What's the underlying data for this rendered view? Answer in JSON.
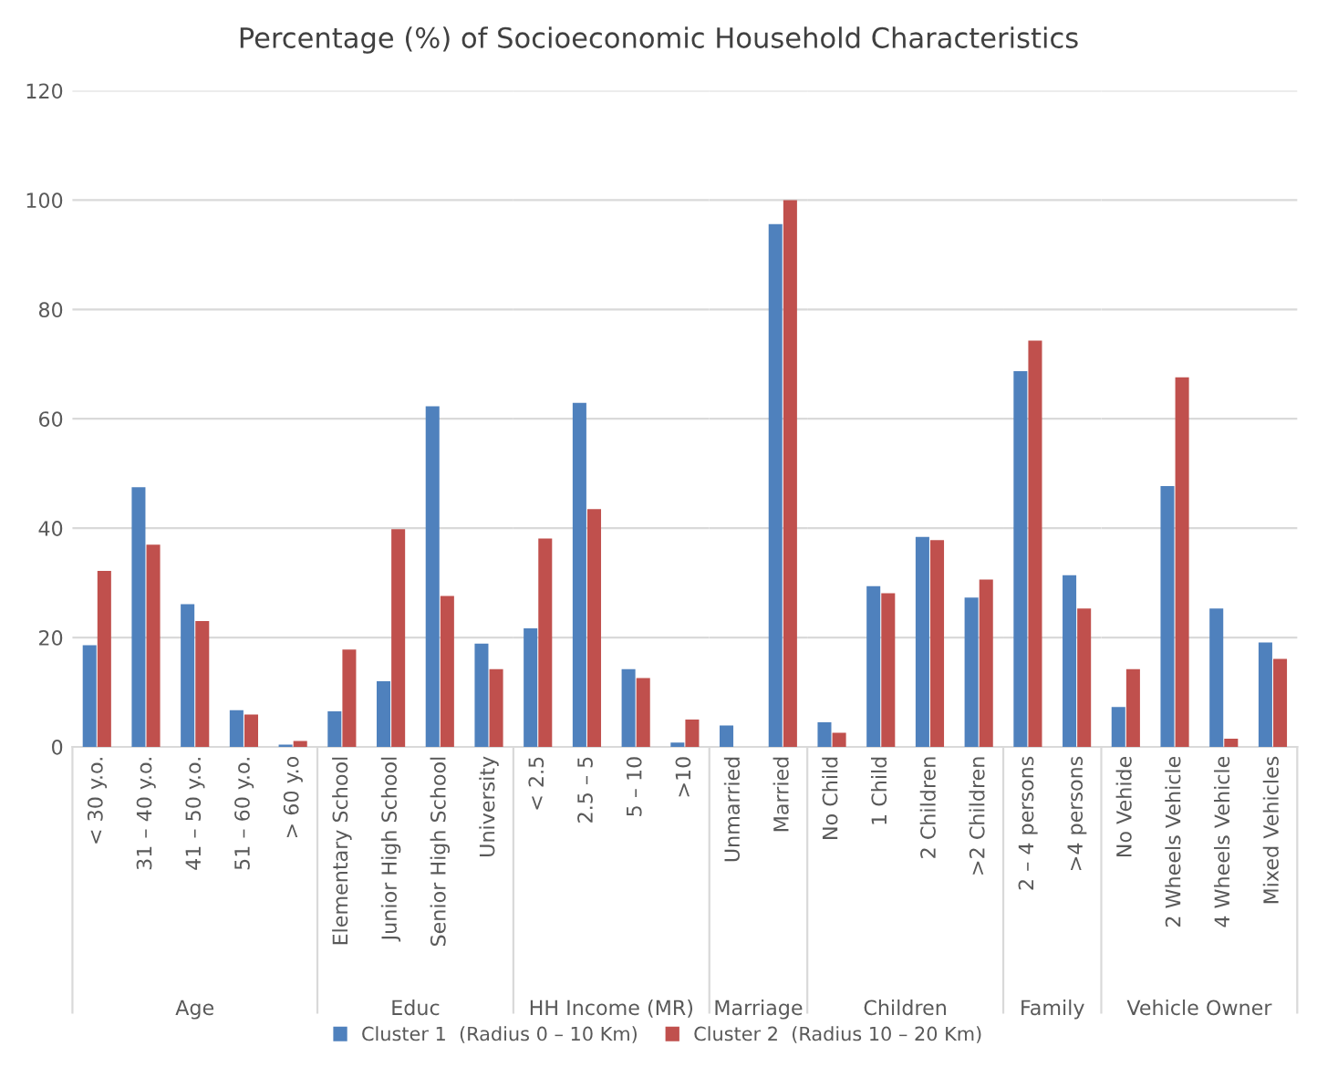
{
  "chart_data": [
    {
      "type": "bar",
      "title": "Percentage (%) of Socioeconomic Household Characteristics",
      "xlabel": "Age",
      "categories": [
        "< 30 y.o.",
        "31 – 40 y.o.",
        "41 – 50 y.o.",
        "51 – 60 y.o.",
        "> 60 y.o"
      ],
      "series": [
        {
          "name": "Cluster 1  (Radius 0 – 10 Km)",
          "color": "#4f81bd",
          "values": [
            18.6,
            47.5,
            26.1,
            6.7,
            0.4
          ]
        },
        {
          "name": "Cluster 2  (Radius 10 – 20 Km)",
          "color": "#c0504d",
          "values": [
            32.2,
            37.0,
            23.0,
            5.9,
            1.1
          ]
        }
      ],
      "ylim": [
        0,
        120
      ],
      "yticks": [
        0,
        20,
        40,
        60,
        80,
        100,
        120
      ],
      "grid": "y",
      "legend": "bottom"
    },
    {
      "type": "bar",
      "xlabel": "Educ",
      "categories": [
        "Elementary School",
        "Junior High School",
        "Senior High School",
        "University"
      ],
      "series": [
        {
          "color": "#4f81bd",
          "values": [
            6.5,
            12.0,
            62.3,
            18.9
          ]
        },
        {
          "color": "#c0504d",
          "values": [
            17.8,
            39.8,
            27.6,
            14.2
          ]
        }
      ],
      "ylim": [
        0,
        120
      ],
      "yticks": [
        0,
        20,
        40,
        60,
        80,
        100,
        120
      ],
      "grid": "y",
      "tick_labels": "x"
    },
    {
      "type": "bar",
      "xlabel": "HH Income (MR)",
      "categories": [
        "< 2.5",
        "2.5 – 5",
        "5 – 10",
        ">10"
      ],
      "series": [
        {
          "color": "#4f81bd",
          "values": [
            21.7,
            62.9,
            14.2,
            0.8
          ]
        },
        {
          "color": "#c0504d",
          "values": [
            38.1,
            43.5,
            12.6,
            5.0
          ]
        }
      ],
      "ylim": [
        0,
        120
      ],
      "yticks": [
        0,
        20,
        40,
        60,
        80,
        100,
        120
      ],
      "grid": "y",
      "tick_labels": "x"
    },
    {
      "type": "bar",
      "xlabel": "Marriage",
      "categories": [
        "Unmarried",
        "Married"
      ],
      "series": [
        {
          "color": "#4f81bd",
          "values": [
            3.9,
            95.6
          ]
        },
        {
          "color": "#c0504d",
          "values": [
            0,
            100
          ]
        }
      ],
      "ylim": [
        0,
        120
      ],
      "yticks": [
        0,
        20,
        40,
        60,
        80,
        100,
        120
      ],
      "grid": "y",
      "tick_labels": "x"
    },
    {
      "type": "bar",
      "xlabel": "Children",
      "categories": [
        "No Child",
        "1 Child",
        "2 Children",
        ">2 Children"
      ],
      "series": [
        {
          "color": "#4f81bd",
          "values": [
            4.5,
            29.4,
            38.4,
            27.3
          ]
        },
        {
          "color": "#c0504d",
          "values": [
            2.6,
            28.1,
            37.8,
            30.6
          ]
        }
      ],
      "ylim": [
        0,
        120
      ],
      "yticks": [
        0,
        20,
        40,
        60,
        80,
        100,
        120
      ],
      "grid": "y",
      "tick_labels": "x"
    },
    {
      "type": "bar",
      "xlabel": "Family",
      "categories": [
        "2 – 4 persons",
        ">4 persons"
      ],
      "series": [
        {
          "color": "#4f81bd",
          "values": [
            68.7,
            31.4
          ]
        },
        {
          "color": "#c0504d",
          "values": [
            74.3,
            25.3
          ]
        }
      ],
      "ylim": [
        0,
        120
      ],
      "yticks": [
        0,
        20,
        40,
        60,
        80,
        100,
        120
      ],
      "grid": "y",
      "tick_labels": "x"
    },
    {
      "type": "bar",
      "xlabel": "Vehicle Owner",
      "categories": [
        "No Vehide",
        "2 Wheels Vehicle",
        "4 Wheels Vehicle",
        "Mixed Vehicles"
      ],
      "series": [
        {
          "color": "#4f81bd",
          "values": [
            7.3,
            47.7,
            25.3,
            19.1
          ]
        },
        {
          "color": "#c0504d",
          "values": [
            14.2,
            67.6,
            1.5,
            16.1
          ]
        }
      ],
      "ylim": [
        0,
        120
      ],
      "yticks": [
        0,
        20,
        40,
        60,
        80,
        100,
        120
      ],
      "grid": "y",
      "tick_labels": "x"
    }
  ]
}
